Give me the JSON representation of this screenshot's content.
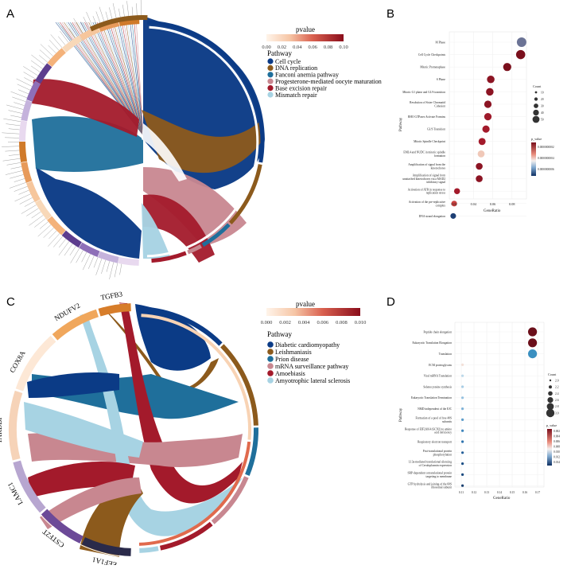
{
  "figure": {
    "panels": [
      "A",
      "B",
      "C",
      "D"
    ]
  },
  "chart_data": [
    {
      "panel": "A",
      "type": "chord",
      "legend_title": "Pathway",
      "colorbar": {
        "title": "pvalue",
        "ticks": [
          "0.00",
          "0.02",
          "0.04",
          "0.06",
          "0.08",
          "0.10"
        ],
        "range": [
          0,
          0.1
        ]
      },
      "pathways": [
        {
          "name": "Cell cycle",
          "color": "#0b3b86"
        },
        {
          "name": "DNA replication",
          "color": "#8c5a1c"
        },
        {
          "name": "Fanconi anemia pathway",
          "color": "#1f6f9b"
        },
        {
          "name": "Progesterone-mediated oocyte maturation",
          "color": "#c88790"
        },
        {
          "name": "Base excision repair",
          "color": "#a31a2b"
        },
        {
          "name": "Mismatch repair",
          "color": "#a7d3e3"
        }
      ]
    },
    {
      "panel": "B",
      "type": "scatter",
      "xlabel": "GeneRatio",
      "ylabel": "Pathway",
      "xticks": [
        "0.02",
        "0.04",
        "0.06",
        "0.08"
      ],
      "xlim": [
        0.015,
        0.095
      ],
      "size_legend": {
        "title": "Count",
        "labels": [
          "10",
          "20",
          "30",
          "40",
          "50"
        ]
      },
      "color_legend": {
        "title": "p_value",
        "labels": [
          "0.0000000002",
          "0.0000000004",
          "0.0000000006"
        ]
      },
      "points": [
        {
          "pathway": "M Phase",
          "x": 0.09,
          "size": 50,
          "color": "#6b7395"
        },
        {
          "pathway": "Cell Cycle Checkpoints",
          "x": 0.089,
          "size": 45,
          "color": "#7a0f1c"
        },
        {
          "pathway": "Mitotic Prometaphase",
          "x": 0.075,
          "size": 32,
          "color": "#7a0f1c"
        },
        {
          "pathway": "S Phase",
          "x": 0.058,
          "size": 26,
          "color": "#8c1423"
        },
        {
          "pathway": "Mitotic G1 phase and G1/S transition",
          "x": 0.057,
          "size": 26,
          "color": "#8c1423"
        },
        {
          "pathway": "Resolution of Sister Chromatid Cohesion",
          "x": 0.055,
          "size": 24,
          "color": "#8c1423"
        },
        {
          "pathway": "RHO GTPases Activate Formins",
          "x": 0.055,
          "size": 24,
          "color": "#9e1a2b"
        },
        {
          "pathway": "G1/S Transition",
          "x": 0.053,
          "size": 23,
          "color": "#a31a2b"
        },
        {
          "pathway": "Mitotic Spindle Checkpoint",
          "x": 0.049,
          "size": 21,
          "color": "#a31a2b"
        },
        {
          "pathway": "EML4 and NUDC in mitotic spindle formation",
          "x": 0.048,
          "size": 20,
          "color": "#f0c8b8"
        },
        {
          "pathway": "Amplification of signal from the kinetochores",
          "x": 0.046,
          "size": 19,
          "color": "#8c1423"
        },
        {
          "pathway": "Amplification of signal from unattached kinetochores via a MAD2 inhibitory signal",
          "x": 0.046,
          "size": 19,
          "color": "#8c1423"
        },
        {
          "pathway": "Activation of ATR in response to replication stress",
          "x": 0.023,
          "size": 12,
          "color": "#a31a2b"
        },
        {
          "pathway": "Activation of the pre-replicative complex",
          "x": 0.02,
          "size": 10,
          "color": "#c9403f"
        },
        {
          "pathway": "DNA strand elongation",
          "x": 0.019,
          "size": 10,
          "color": "#1d3f74"
        }
      ]
    },
    {
      "panel": "C",
      "type": "chord",
      "legend_title": "Pathway",
      "colorbar": {
        "title": "pvalue",
        "ticks": [
          "0.000",
          "0.002",
          "0.004",
          "0.006",
          "0.008",
          "0.010"
        ],
        "range": [
          0,
          0.01
        ]
      },
      "genes": [
        "TGFB3",
        "NDUFV2",
        "COX8A",
        "TARDBP",
        "LAMC1",
        "CSTF2T",
        "EEF1A1"
      ],
      "pathways": [
        {
          "name": "Diabetic cardiomyopathy",
          "color": "#0b3b86"
        },
        {
          "name": "Leishmaniasis",
          "color": "#8c5a1c"
        },
        {
          "name": "Prion disease",
          "color": "#1f6f9b"
        },
        {
          "name": "mRNA surveillance pathway",
          "color": "#c88790"
        },
        {
          "name": "Amoebiasis",
          "color": "#a31a2b"
        },
        {
          "name": "Amyotrophic lateral sclerosis",
          "color": "#a7d3e3"
        }
      ]
    },
    {
      "panel": "D",
      "type": "scatter",
      "xlabel": "GeneRatio",
      "ylabel": "Pathway",
      "xticks": [
        "0.11",
        "0.12",
        "0.13",
        "0.14",
        "0.15",
        "0.16",
        "0.17"
      ],
      "xlim": [
        0.105,
        0.175
      ],
      "size_legend": {
        "title": "Count",
        "labels": [
          "2.0",
          "2.2",
          "2.4",
          "2.6",
          "2.8",
          "3.0"
        ]
      },
      "color_legend": {
        "title": "p_value",
        "labels": [
          "0.002",
          "0.004",
          "0.006",
          "0.008",
          "0.010",
          "0.012",
          "0.014"
        ]
      },
      "points": [
        {
          "pathway": "Peptide chain elongation",
          "x": 0.166,
          "size": 3,
          "color": "#6b0f1a"
        },
        {
          "pathway": "Eukaryotic Translation Elongation",
          "x": 0.166,
          "size": 3,
          "color": "#6b0f1a"
        },
        {
          "pathway": "Translation",
          "x": 0.166,
          "size": 3,
          "color": "#3a8fc0"
        },
        {
          "pathway": "ECM proteoglycans",
          "x": 0.111,
          "size": 2,
          "color": "#f3e0d8"
        },
        {
          "pathway": "Viral mRNA Translation",
          "x": 0.111,
          "size": 2,
          "color": "#bcd8ea"
        },
        {
          "pathway": "Selenocysteine synthesis",
          "x": 0.111,
          "size": 2,
          "color": "#a8cde6"
        },
        {
          "pathway": "Eukaryotic Translation Termination",
          "x": 0.111,
          "size": 2,
          "color": "#94c1e0"
        },
        {
          "pathway": "NMD independent of the EJC",
          "x": 0.111,
          "size": 2,
          "color": "#7fb3d8"
        },
        {
          "pathway": "Formation of a pool of free 40S subunits",
          "x": 0.111,
          "size": 2,
          "color": "#5d9dcb"
        },
        {
          "pathway": "Response of EIF2AK4 (GCN2) to amino acid deficiency",
          "x": 0.111,
          "size": 2,
          "color": "#3f86bd"
        },
        {
          "pathway": "Respiratory electron transport",
          "x": 0.111,
          "size": 2,
          "color": "#2f74ae"
        },
        {
          "pathway": "Post-translational protein phosphorylation",
          "x": 0.111,
          "size": 2,
          "color": "#245f99"
        },
        {
          "pathway": "L13a-mediated translational silencing of Ceruloplasmin expression",
          "x": 0.111,
          "size": 2,
          "color": "#1c4f86"
        },
        {
          "pathway": "SRP-dependent cotranslational protein targeting to membrane",
          "x": 0.111,
          "size": 2,
          "color": "#1a4a80"
        },
        {
          "pathway": "GTP hydrolysis and joining of the 60S ribosomal subunit",
          "x": 0.111,
          "size": 2,
          "color": "#173f70"
        }
      ]
    }
  ]
}
